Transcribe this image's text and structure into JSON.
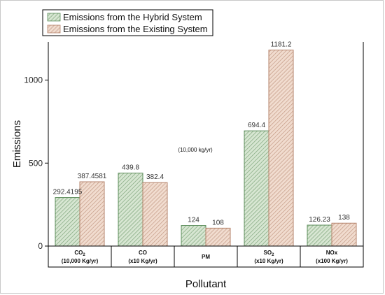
{
  "chart_data": {
    "type": "bar",
    "xlabel": "Pollutant",
    "ylabel": "Emissions",
    "ylim": [
      0,
      1230
    ],
    "yticks": [
      0,
      500,
      1000
    ],
    "categories": [
      {
        "line1": "CO",
        "sub": "2",
        "line2": "(10,000 Kg/yr)"
      },
      {
        "line1": "CO",
        "sub": "",
        "line2": "(x10 Kg/yr)"
      },
      {
        "line1": "PM",
        "sub": "",
        "line2": ""
      },
      {
        "line1": "SO",
        "sub": "2",
        "line2": "(x10 Kg/yr)"
      },
      {
        "line1": "NOx",
        "sub": "",
        "line2": "(x100 Kg/yr)"
      }
    ],
    "series": [
      {
        "name": "Emissions from the Hybrid System",
        "values": [
          292.4195,
          439.8,
          124,
          694.4,
          126.23
        ],
        "labels": [
          "292.4195",
          "439.8",
          "124",
          "694.4",
          "126.23"
        ],
        "color": "#5b8c5a",
        "fill": "#d7e6d2"
      },
      {
        "name": "Emissions from the Existing System",
        "values": [
          387.4581,
          382.4,
          108,
          1181.2,
          138
        ],
        "labels": [
          "387.4581",
          "382.4",
          "108",
          "1181.2",
          "138"
        ],
        "color": "#b5836b",
        "fill": "#f1dccf"
      }
    ],
    "annotation": "(10,000 kg/yr)",
    "legend": "top-left",
    "grid": false
  }
}
